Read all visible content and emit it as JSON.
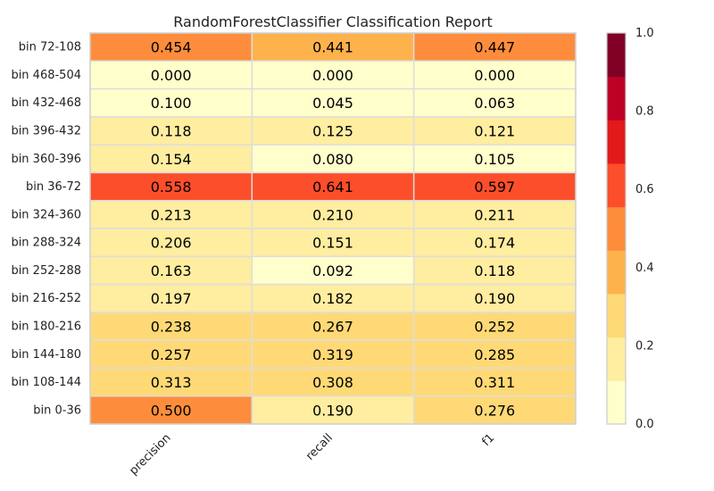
{
  "chart_data": {
    "type": "heatmap",
    "title": "RandomForestClassifier Classification Report",
    "xlabel": "",
    "ylabel": "",
    "columns": [
      "precision",
      "recall",
      "f1"
    ],
    "rows": [
      "bin 72-108",
      "bin 468-504",
      "bin 432-468",
      "bin 396-432",
      "bin 360-396",
      "bin 36-72",
      "bin 324-360",
      "bin 288-324",
      "bin 252-288",
      "bin 216-252",
      "bin 180-216",
      "bin 144-180",
      "bin 108-144",
      "bin 0-36"
    ],
    "values": [
      [
        "0.454",
        "0.441",
        "0.447"
      ],
      [
        "0.000",
        "0.000",
        "0.000"
      ],
      [
        "0.100",
        "0.045",
        "0.063"
      ],
      [
        "0.118",
        "0.125",
        "0.121"
      ],
      [
        "0.154",
        "0.080",
        "0.105"
      ],
      [
        "0.558",
        "0.641",
        "0.597"
      ],
      [
        "0.213",
        "0.210",
        "0.211"
      ],
      [
        "0.206",
        "0.151",
        "0.174"
      ],
      [
        "0.163",
        "0.092",
        "0.118"
      ],
      [
        "0.197",
        "0.182",
        "0.190"
      ],
      [
        "0.238",
        "0.267",
        "0.252"
      ],
      [
        "0.257",
        "0.319",
        "0.285"
      ],
      [
        "0.313",
        "0.308",
        "0.311"
      ],
      [
        "0.500",
        "0.190",
        "0.276"
      ]
    ],
    "color_range": [
      0.0,
      1.0
    ],
    "colorbar_ticks": [
      "0.0",
      "0.2",
      "0.4",
      "0.6",
      "0.8",
      "1.0"
    ],
    "colormap": [
      "#ffffcc",
      "#ffeda0",
      "#fed976",
      "#feb24c",
      "#fd8d3c",
      "#fc4e2a",
      "#e31a1c",
      "#bd0026",
      "#800026"
    ],
    "grid": true,
    "grid_color": "#dddddd",
    "text_color": "#000000"
  }
}
